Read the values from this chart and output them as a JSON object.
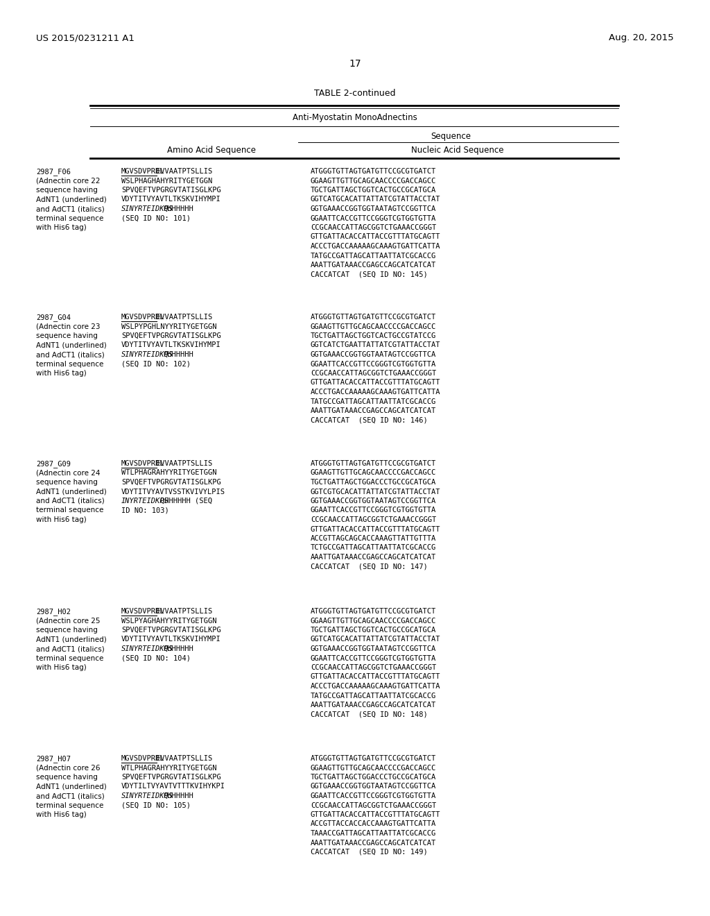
{
  "page_number": "17",
  "patent_number": "US 2015/0231211 A1",
  "patent_date": "Aug. 20, 2015",
  "table_title": "TABLE 2-continued",
  "table_subtitle": "Anti-Myostatin MonoAdnectins",
  "col_header1": "Amino Acid Sequence",
  "col_header2": "Nucleic Acid Sequence",
  "sequence_header": "Sequence",
  "entries": [
    {
      "id": "2987_F06",
      "desc_lines": [
        "(Adnectin core 22",
        "sequence having",
        "AdNT1 (underlined)",
        "and AdCT1 (italics)",
        "terminal sequence",
        "with His6 tag)"
      ],
      "aa_underlined": "MGVSDVPRDL",
      "aa_lines": [
        "MGVSDVPRDLEVVAATPTSLLIS",
        "WSLPHAGHAHYRITYGETGGN",
        "SPVQEFTVPGRGVTATISGLKPG",
        "VDYTITVYAVTLTKSKVIHYMPI",
        "SINYRTEIDKPSQHHHHHH",
        "(SEQ ID NO: 101)"
      ],
      "aa_italic_prefix": "SINYRTEI",
      "aa_italic_dkps": "DKPS",
      "aa_line5_idx": 4,
      "na_lines": [
        "ATGGGTGTTAGTGATGTTCCGCGTGATCT",
        "GGAAGTTGTTGCAGCAACCCCGACCAGCC",
        "TGCTGATTAGCTGGTCACTGCCGCATGCA",
        "GGTCATGCACATTATTATCGTATTACCTAT",
        "GGTGAAACCGGTGGTAATAGTCCGGTTCA",
        "GGAATTCACCGTTCCGGGTCGTGGTGTTA",
        "CCGCAACCATTAGCGGTCTGAAACCGGGT",
        "GTTGATTACACCATTACCGTTTATGCAGTT",
        "ACCCTGACCAAAAAGCAAAGTGATTCATTA",
        "TATGCCGATTAGCATTAATTATCGCACCG",
        "AAATTGATAAACCGAGCCAGCATCATCAT",
        "CACCATCAT  (SEQ ID NO: 145)"
      ]
    },
    {
      "id": "2987_G04",
      "desc_lines": [
        "(Adnectin core 23",
        "sequence having",
        "AdNT1 (underlined)",
        "and AdCT1 (italics)",
        "terminal sequence",
        "with His6 tag)"
      ],
      "aa_underlined": "MGVSDVPRDL",
      "aa_lines": [
        "MGVSDVPRDLEVVAATPTSLLIS",
        "WSLPYPGHLNYYRITYGETGGN",
        "SPVQEFTVPGRGVTATISGLKPG",
        "VDYTITVYAVTLTKSKVIHYMPI",
        "SINYRTEIDKPSQHHHHHH",
        "(SEQ ID NO: 102)"
      ],
      "aa_italic_prefix": "SINYRTEI",
      "aa_italic_dkps": "DKPS",
      "aa_line5_idx": 4,
      "na_lines": [
        "ATGGGTGTTAGTGATGTTCCGCGTGATCT",
        "GGAAGTTGTTGCAGCAACCCCGACCAGCC",
        "TGCTGATTAGCTGGTCACTGCCGTATCCG",
        "GGTCATCTGAATTATTATCGTATTACCTAT",
        "GGTGAAACCGGTGGTAATAGTCCGGTTCA",
        "GGAATTCACCGTTCCGGGTCGTGGTGTTA",
        "CCGCAACCATTAGCGGTCTGAAACCGGGT",
        "GTTGATTACACCATTACCGTTTATGCAGTT",
        "ACCCTGACCAAAAAGCAAAGTGATTCATTA",
        "TATGCCGATTAGCATTAATTATCGCACCG",
        "AAATTGATAAACCGAGCCAGCATCATCAT",
        "CACCATCAT  (SEQ ID NO: 146)"
      ]
    },
    {
      "id": "2987_G09",
      "desc_lines": [
        "(Adnectin core 24",
        "sequence having",
        "AdNT1 (underlined)",
        "and AdCT1 (italics)",
        "terminal sequence",
        "with His6 tag)"
      ],
      "aa_underlined": "MGVSDVPRDL",
      "aa_lines": [
        "MGVSDVPRDLEVVAATPTSLLIS",
        "WTLPHAGRAHYYRITYGETGGN",
        "SPVQEFTVPGRGVTATISGLKPG",
        "VDYTITVYAVTVSSTKVIVYLPIS",
        "INYRTEIDKPSQHHHHHH (SEQ",
        "ID NO: 103)"
      ],
      "aa_italic_prefix": "INYRTEI",
      "aa_italic_dkps": "DKPS",
      "aa_line5_idx": 4,
      "na_lines": [
        "ATGGGTGTTAGTGATGTTCCGCGTGATCT",
        "GGAAGTTGTTGCAGCAACCCCGACCAGCC",
        "TGCTGATTAGCTGGACCCTGCCGCATGCA",
        "GGTCGTGCACATTATTATCGTATTACCTAT",
        "GGTGAAACCGGTGGTAATAGTCCGGTTCA",
        "GGAATTCACCGTTCCGGGTCGTGGTGTTA",
        "CCGCAACCATTAGCGGTCTGAAACCGGGT",
        "GTTGATTACACCATTACCGTTTATGCAGTT",
        "ACCGTTAGCAGCACCAAAGTTATTGTTTA",
        "TCTGCCGATTAGCATTAATTATCGCACCG",
        "AAATTGATAAACCGAGCCAGCATCATCAT",
        "CACCATCAT  (SEQ ID NO: 147)"
      ]
    },
    {
      "id": "2987_H02",
      "desc_lines": [
        "(Adnectin core 25",
        "sequence having",
        "AdNT1 (underlined)",
        "and AdCT1 (italics)",
        "terminal sequence",
        "with His6 tag)"
      ],
      "aa_underlined": "MGVSDVPRDL",
      "aa_lines": [
        "MGVSDVPRDLEVVAATPTSLLIS",
        "WSLPYAGHAHYYRITYGETGGN",
        "SPVQEFTVPGRGVTATISGLKPG",
        "VDYTITVYAVTLTKSKVIHYMPI",
        "SINYRTEIDKPSQHHHHHH",
        "(SEQ ID NO: 104)"
      ],
      "aa_italic_prefix": "SINYRTEI",
      "aa_italic_dkps": "DKPS",
      "aa_line5_idx": 4,
      "na_lines": [
        "ATGGGTGTTAGTGATGTTCCGCGTGATCT",
        "GGAAGTTGTTGCAGCAACCCCGACCAGCC",
        "TGCTGATTAGCTGGTCACTGCCGCATGCA",
        "GGTCATGCACATTATTATCGTATTACCTAT",
        "GGTGAAACCGGTGGTAATAGTCCGGTTCA",
        "GGAATTCACCGTTCCGGGTCGTGGTGTTA",
        "CCGCAACCATTAGCGGTCTGAAACCGGGT",
        "GTTGATTACACCATTACCGTTTATGCAGTT",
        "ACCCTGACCAAAAAGCAAAGTGATTCATTA",
        "TATGCCGATTAGCATTAATTATCGCACCG",
        "AAATTGATAAACCGAGCCAGCATCATCAT",
        "CACCATCAT  (SEQ ID NO: 148)"
      ]
    },
    {
      "id": "2987_H07",
      "desc_lines": [
        "(Adnectin core 26",
        "sequence having",
        "AdNT1 (underlined)",
        "and AdCT1 (italics)",
        "terminal sequence",
        "with His6 tag)"
      ],
      "aa_underlined": "MGVSDVPRDL",
      "aa_lines": [
        "MGVSDVPRDLEVVAATPTSLLIS",
        "WTLPHAGRAHYYRITYGETGGN",
        "SPVQEFTVPGRGVTATISGLKPG",
        "VDYTILTVYAVTVTTTKVIHYKPI",
        "SINYRTEIDKPSQHHHHHH",
        "(SEQ ID NO: 105)"
      ],
      "aa_italic_prefix": "SINYRTEI",
      "aa_italic_dkps": "DKPS",
      "aa_line5_idx": 4,
      "na_lines": [
        "ATGGGTGTTAGTGATGTTCCGCGTGATCT",
        "GGAAGTTGTTGCAGCAACCCCGACCAGCC",
        "TGCTGATTAGCTGGACCCTGCCGCATGCA",
        "GGTGAAACCGGTGGTAATAGTCCGGTTCA",
        "GGAATTCACCGTTCCGGGTCGTGGTGTTA",
        "CCGCAACCATTAGCGGTCTGAAACCGGGT",
        "GTTGATTACACCATTACCGTTTATGCAGTT",
        "ACCGTTACCACCACCAAAGTGATTCATTA",
        "TAAACCGATTAGCATTAATTATCGCACCG",
        "AAATTGATAAACCGAGCCAGCATCATCAT",
        "CACCATCAT  (SEQ ID NO: 149)"
      ]
    }
  ],
  "bg_color": "#ffffff",
  "text_color": "#000000"
}
